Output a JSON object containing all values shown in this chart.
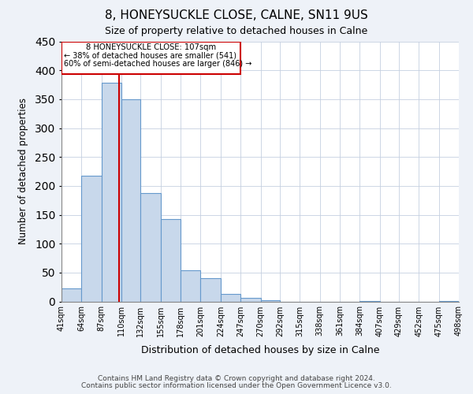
{
  "title": "8, HONEYSUCKLE CLOSE, CALNE, SN11 9US",
  "subtitle": "Size of property relative to detached houses in Calne",
  "xlabel": "Distribution of detached houses by size in Calne",
  "ylabel": "Number of detached properties",
  "footer_line1": "Contains HM Land Registry data © Crown copyright and database right 2024.",
  "footer_line2": "Contains public sector information licensed under the Open Government Licence v3.0.",
  "bin_edges": [
    41,
    64,
    87,
    110,
    132,
    155,
    178,
    201,
    224,
    247,
    270,
    292,
    315,
    338,
    361,
    384,
    407,
    429,
    452,
    475,
    498
  ],
  "bin_labels": [
    "41sqm",
    "64sqm",
    "87sqm",
    "110sqm",
    "132sqm",
    "155sqm",
    "178sqm",
    "201sqm",
    "224sqm",
    "247sqm",
    "270sqm",
    "292sqm",
    "315sqm",
    "338sqm",
    "361sqm",
    "384sqm",
    "407sqm",
    "429sqm",
    "452sqm",
    "475sqm",
    "498sqm"
  ],
  "bar_heights": [
    22,
    218,
    378,
    350,
    188,
    142,
    54,
    40,
    13,
    6,
    2,
    0,
    0,
    0,
    0,
    1,
    0,
    0,
    0,
    1
  ],
  "bar_color": "#c8d8eb",
  "bar_edge_color": "#6699cc",
  "property_line_x": 107,
  "property_line_color": "#cc0000",
  "annotation_text_line1": "8 HONEYSUCKLE CLOSE: 107sqm",
  "annotation_text_line2": "← 38% of detached houses are smaller (541)",
  "annotation_text_line3": "60% of semi-detached houses are larger (846) →",
  "annotation_box_color": "#cc0000",
  "ylim": [
    0,
    450
  ],
  "yticks": [
    0,
    50,
    100,
    150,
    200,
    250,
    300,
    350,
    400,
    450
  ],
  "bg_color": "#eef2f8",
  "plot_bg_color": "#ffffff",
  "grid_color": "#c5d0e0"
}
